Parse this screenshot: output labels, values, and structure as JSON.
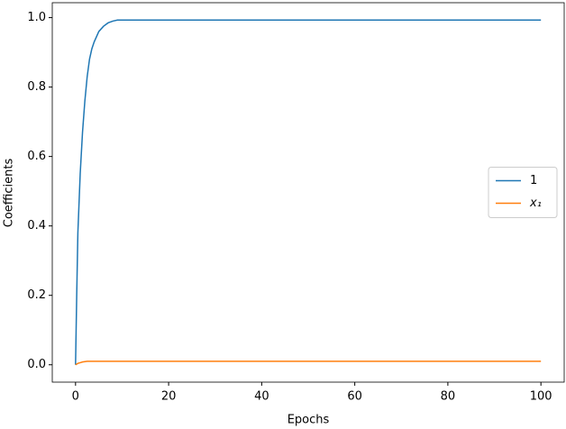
{
  "chart_data": {
    "type": "line",
    "xlabel": "Epochs",
    "ylabel": "Coefficients",
    "x": [
      0,
      0.25,
      0.5,
      1,
      1.5,
      2,
      2.5,
      3,
      3.5,
      4,
      5,
      6,
      7,
      8,
      9,
      10,
      20,
      30,
      40,
      50,
      60,
      70,
      80,
      90,
      100
    ],
    "series": [
      {
        "name": "1",
        "color": "#1f77b4",
        "values": [
          0,
          0.2,
          0.38,
          0.55,
          0.67,
          0.76,
          0.83,
          0.88,
          0.91,
          0.93,
          0.96,
          0.975,
          0.985,
          0.99,
          0.993,
          0.993,
          0.993,
          0.993,
          0.993,
          0.993,
          0.993,
          0.993,
          0.993,
          0.993,
          0.993
        ]
      },
      {
        "name": "x₁",
        "color": "#ff7f0e",
        "values": [
          0,
          0.002,
          0.004,
          0.006,
          0.008,
          0.009,
          0.01,
          0.01,
          0.01,
          0.01,
          0.01,
          0.01,
          0.01,
          0.01,
          0.01,
          0.01,
          0.01,
          0.01,
          0.01,
          0.01,
          0.01,
          0.01,
          0.01,
          0.01,
          0.01
        ]
      }
    ],
    "xlim": [
      -5,
      105
    ],
    "ylim": [
      -0.05,
      1.043
    ],
    "xticks": [
      0,
      20,
      40,
      60,
      80,
      100
    ],
    "yticks": [
      {
        "value": 0,
        "label": "0.0"
      },
      0.2,
      0.4,
      0.6,
      0.8,
      {
        "value": 1,
        "label": "1.0"
      }
    ],
    "legend": "center right"
  }
}
